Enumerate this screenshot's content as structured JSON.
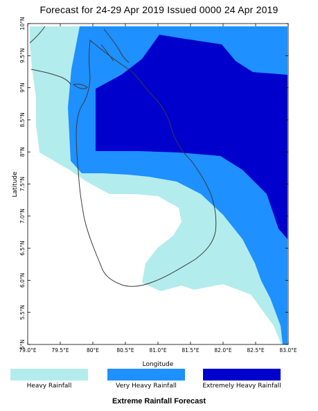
{
  "title": "Forecast for 24-29 Apr 2019 Issued 0000 24 Apr 2019",
  "axes": {
    "xlabel": "Longitude",
    "ylabel": "Latitude",
    "lon_ticks": [
      "79.0°E",
      "79.5°E",
      "80°E",
      "80.5°E",
      "81.0°E",
      "81.5°E",
      "82.0°E",
      "82.5°E",
      "83.0°E"
    ],
    "lat_ticks": [
      "10°N",
      "9.5°N",
      "9°N",
      "8.5°N",
      "8°N",
      "7.5°N",
      "7.0°N",
      "6.5°N",
      "6.0°N",
      "5.5°N",
      "5°N"
    ],
    "lon_range": [
      79.0,
      83.0
    ],
    "lat_range": [
      5.0,
      10.0
    ]
  },
  "legend": [
    {
      "label": "Heavy Rainfall",
      "color": "#b3ecec"
    },
    {
      "label": "Very Heavy Rainfall",
      "color": "#1e90ff"
    },
    {
      "label": "Extremely Heavy Rainfall",
      "color": "#0000cd"
    }
  ],
  "footer": "Extreme Rainfall Forecast"
}
